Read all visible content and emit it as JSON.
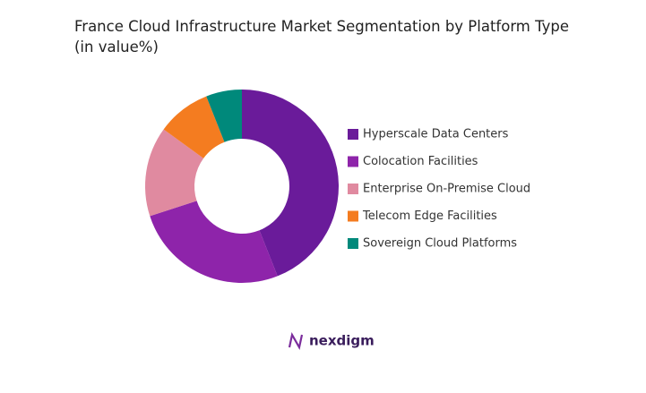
{
  "chart_data": {
    "type": "pie",
    "donut": true,
    "title": "France Cloud Infrastructure Market Segmentation by Platform Type (in value%)",
    "categories": [
      "Hyperscale Data Centers",
      "Colocation Facilities",
      "Enterprise On-Premise Cloud",
      "Telecom Edge Facilities",
      "Sovereign Cloud Platforms"
    ],
    "values": [
      44,
      26,
      15,
      9,
      6
    ],
    "colors": [
      "#6a1b9a",
      "#8e24aa",
      "#e08aa0",
      "#f47c20",
      "#00897b"
    ],
    "legend": "right"
  },
  "brand": "nexdigm"
}
